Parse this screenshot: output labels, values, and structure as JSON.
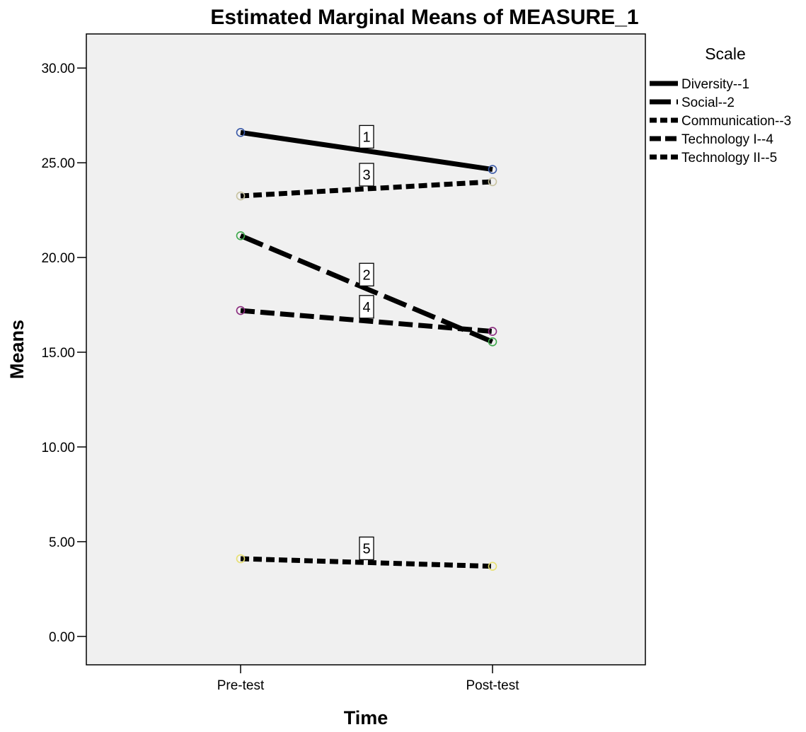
{
  "chart_data": {
    "type": "line",
    "title": "Estimated Marginal Means of MEASURE_1",
    "xlabel": "Time",
    "ylabel": "Means",
    "categories": [
      "Pre-test",
      "Post-test"
    ],
    "ylim": [
      -1.5,
      31.8
    ],
    "yticks": [
      0,
      5,
      10,
      15,
      20,
      25,
      30
    ],
    "ytick_labels": [
      "0.00",
      "5.00",
      "10.00",
      "15.00",
      "20.00",
      "25.00",
      "30.00"
    ],
    "legend_title": "Scale",
    "legend_position": "right",
    "grid": false,
    "series": [
      {
        "name": "Diversity--1",
        "label": "1",
        "values": [
          26.6,
          24.65
        ],
        "marker_color": "#3b5aa8",
        "dash": "none"
      },
      {
        "name": "Social--2",
        "label": "2",
        "values": [
          21.15,
          15.55
        ],
        "marker_color": "#3ca84a",
        "dash": "long"
      },
      {
        "name": "Communication--3",
        "label": "3",
        "values": [
          23.25,
          24.0
        ],
        "marker_color": "#c8c3a0",
        "dash": "short"
      },
      {
        "name": "Technology I--4",
        "label": "4",
        "values": [
          17.2,
          16.1
        ],
        "marker_color": "#8a2a7e",
        "dash": "medium"
      },
      {
        "name": "Technology II--5",
        "label": "5",
        "values": [
          4.1,
          3.7
        ],
        "marker_color": "#e8e070",
        "dash": "short"
      }
    ]
  }
}
